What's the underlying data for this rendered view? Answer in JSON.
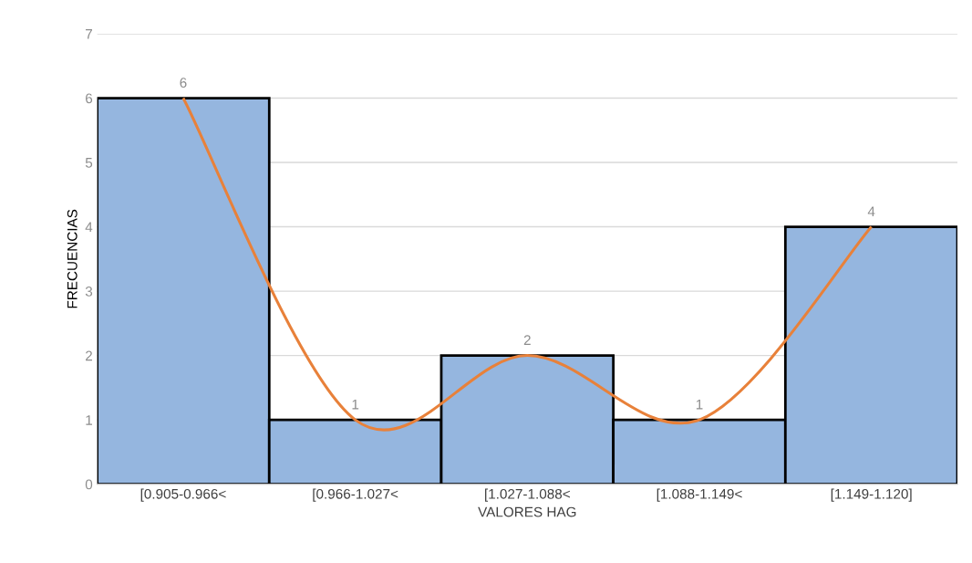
{
  "chart_data": {
    "type": "bar",
    "xlabel": "VALORES HAG",
    "ylabel": "FRECUENCIAS",
    "categories": [
      "[0.905-0.966<",
      "[0.966-1.027<",
      "[1.027-1.088<",
      "[1.088-1.149<",
      "[1.149-1.120]"
    ],
    "series": [
      {
        "color": "#95b6df",
        "values": [
          6,
          1,
          2,
          1,
          4
        ],
        "value_labels": [
          "6",
          "1",
          "2",
          "1",
          "4"
        ]
      },
      {
        "type": "line",
        "color": "#e8813a",
        "values": [
          6,
          1,
          2,
          1,
          4
        ]
      }
    ],
    "ylim": [
      0,
      7
    ],
    "yticks": [
      0,
      1,
      2,
      3,
      4,
      5,
      6,
      7
    ],
    "grid": "y"
  }
}
